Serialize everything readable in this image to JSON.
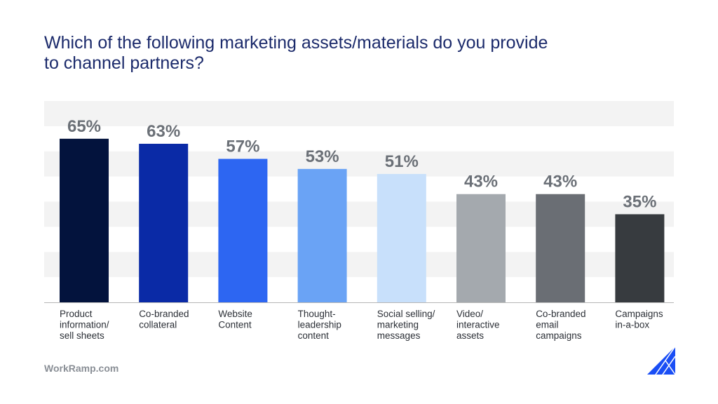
{
  "title": "Which of the following marketing assets/materials do you provide to channel partners?",
  "footer": "WorkRamp.com",
  "chart_data": {
    "type": "bar",
    "categories": [
      "Product information/ sell sheets",
      "Co-branded collateral",
      "Website Content",
      "Thought-leadership content",
      "Social selling/ marketing messages",
      "Video/ interactive assets",
      "Co-branded email campaigns",
      "Campaigns in-a-box"
    ],
    "category_lines": [
      [
        "Product",
        "information/",
        "sell sheets"
      ],
      [
        "Co-branded",
        "collateral"
      ],
      [
        "Website",
        "Content"
      ],
      [
        "Thought-",
        "leadership",
        "content"
      ],
      [
        "Social selling/",
        "marketing",
        "messages"
      ],
      [
        "Video/",
        "interactive",
        "assets"
      ],
      [
        "Co-branded",
        "email",
        "campaigns"
      ],
      [
        "Campaigns",
        "in-a-box"
      ]
    ],
    "values": [
      65,
      63,
      57,
      53,
      51,
      43,
      43,
      35
    ],
    "data_labels": [
      "65%",
      "63%",
      "57%",
      "53%",
      "51%",
      "43%",
      "43%",
      "35%"
    ],
    "bar_colors": [
      "#03133d",
      "#0a2aa6",
      "#2d66f2",
      "#6aa3f5",
      "#c8e0fb",
      "#a4a9ae",
      "#6a6e74",
      "#373b3f"
    ],
    "label_color": "#6b7077",
    "band_color": "#f3f3f3",
    "axis_color": "#b5b5b5",
    "ylim": [
      0,
      80
    ],
    "grid": "alternating horizontal bands",
    "xlabel": "",
    "ylabel": ""
  },
  "logo": {
    "icon": "workramp-triangle-logo",
    "color": "#1a4ef5"
  }
}
